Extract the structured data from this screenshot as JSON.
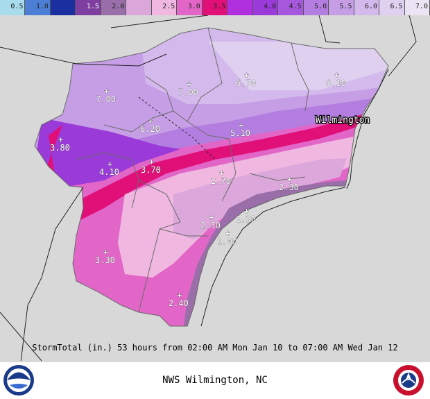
{
  "legend": {
    "items": [
      {
        "label": "0.5",
        "color": "#a8dcec"
      },
      {
        "label": "1.0",
        "color": "#4d7ed6"
      },
      {
        "label": "",
        "color": "#1a2fa0"
      },
      {
        "label": "1.5",
        "color": "#7e3fa0"
      },
      {
        "label": "2.0",
        "color": "#9a6ea8"
      },
      {
        "label": "",
        "color": "#dca8dc"
      },
      {
        "label": "2.5",
        "color": "#f0b8e0"
      },
      {
        "label": "3.0",
        "color": "#e266c8"
      },
      {
        "label": "3.5",
        "color": "#e01078"
      },
      {
        "label": "",
        "color": "#b030e0"
      },
      {
        "label": "4.0",
        "color": "#9a3ad8"
      },
      {
        "label": "4.5",
        "color": "#a658dc"
      },
      {
        "label": "5.0",
        "color": "#b47ee0"
      },
      {
        "label": "5.5",
        "color": "#c69ee6"
      },
      {
        "label": "6.0",
        "color": "#d4baec"
      },
      {
        "label": "6.5",
        "color": "#e0d0f0"
      },
      {
        "label": "7.0",
        "color": "#ece4f4"
      }
    ]
  },
  "map": {
    "city": "Wilmington",
    "values": [
      "7.00",
      "7.00",
      "6.70",
      "6.10",
      "6.20",
      "5.10",
      "3.80",
      "4.10",
      "3.70",
      "2.70",
      "2.30",
      "2.30",
      "1.20",
      "1.00",
      "3.30",
      "2.40"
    ]
  },
  "caption": "StormTotal  (in.) 53 hours from 02:00 AM Mon Jan 10 to 07:00 AM Wed Jan 12",
  "footer": {
    "office": "NWS Wilmington, NC"
  }
}
